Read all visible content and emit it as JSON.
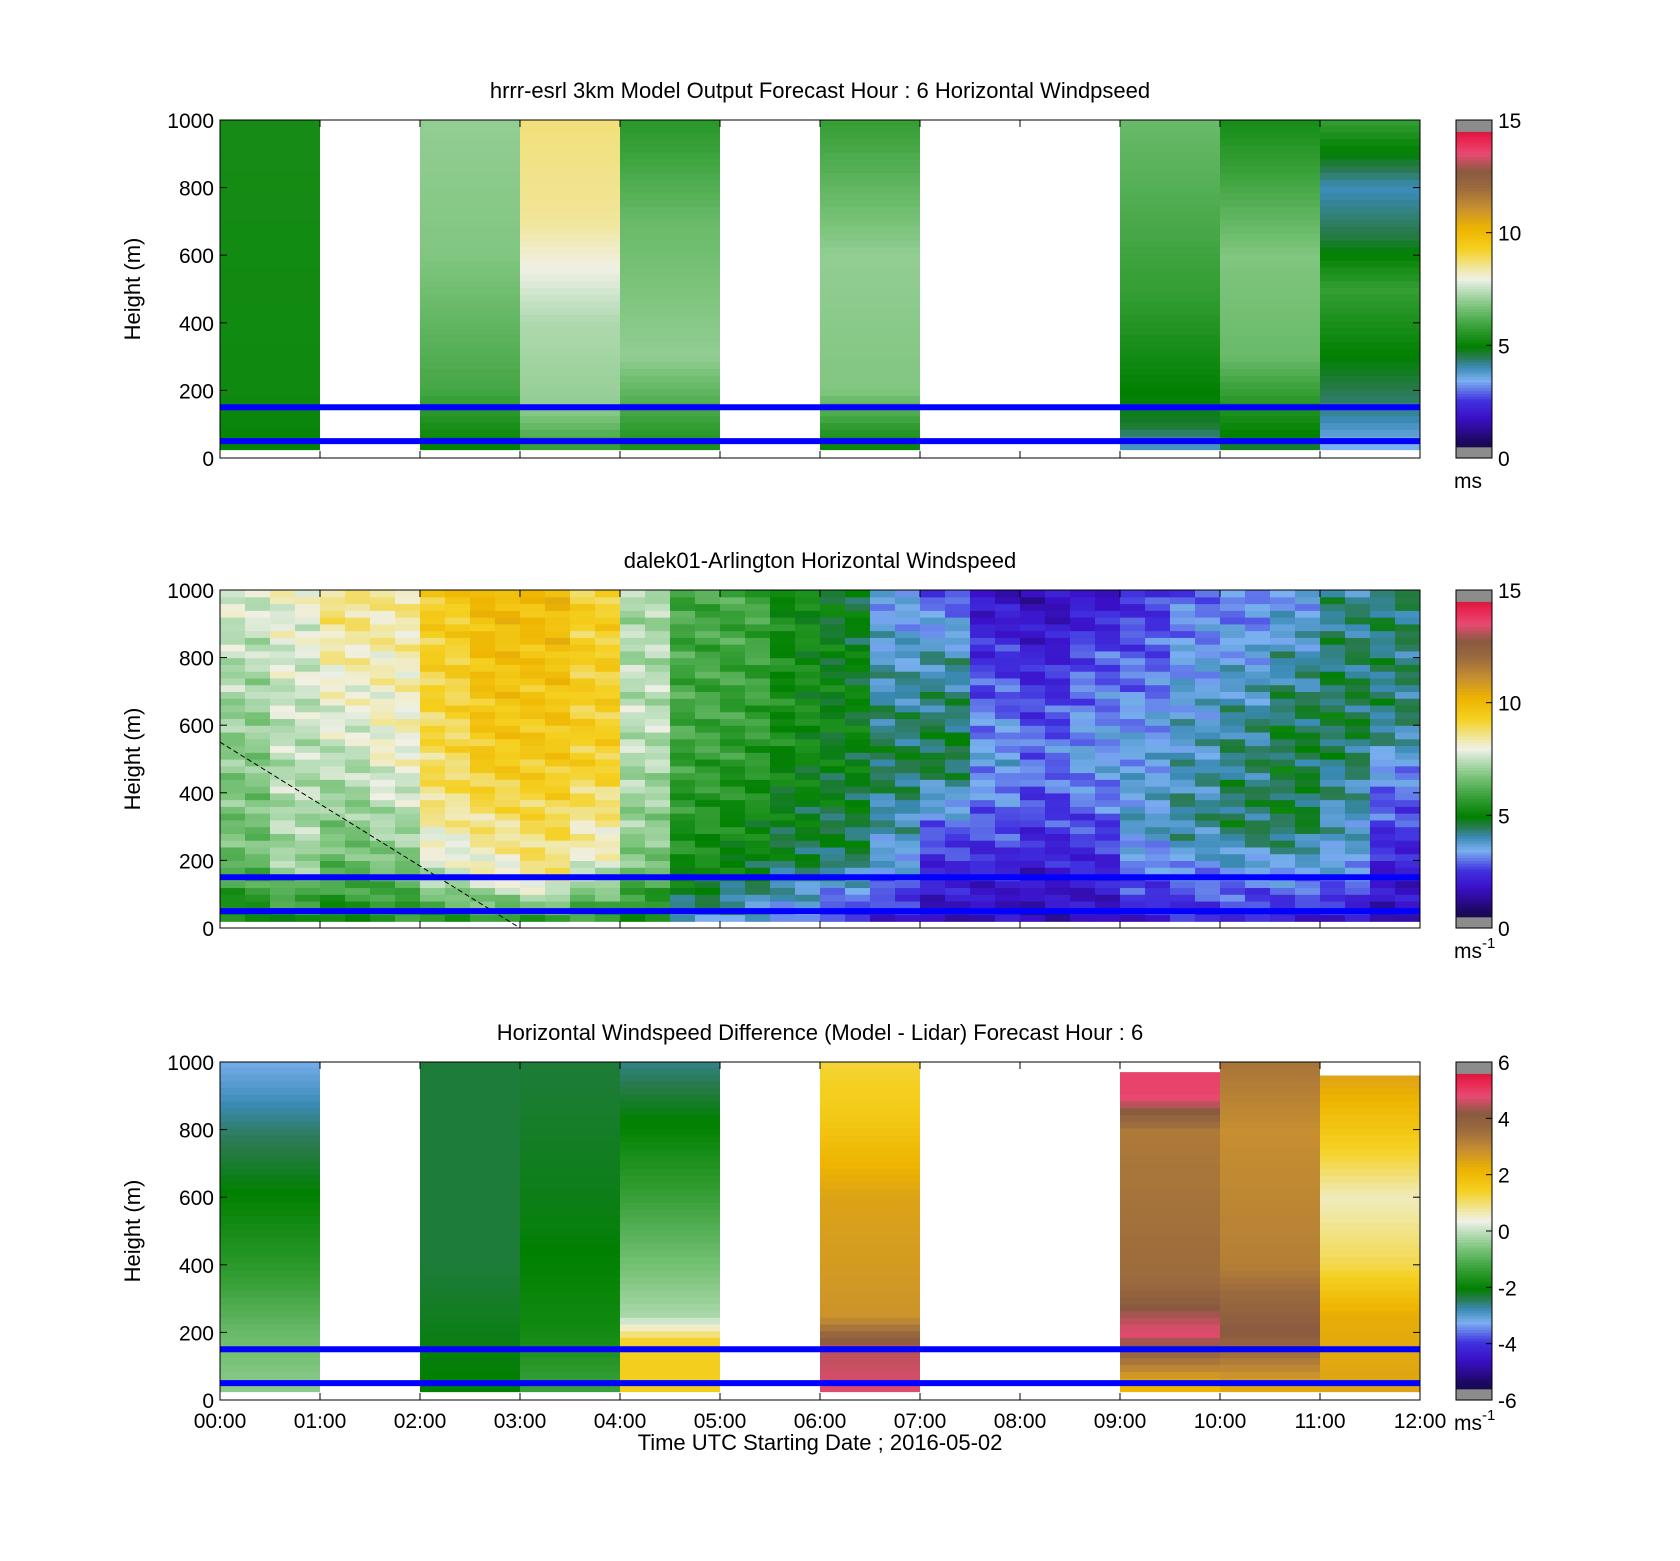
{
  "figure": {
    "xlabel": "Time UTC  Starting Date ; 2016-05-02",
    "x_ticks": [
      "00:00",
      "01:00",
      "02:00",
      "03:00",
      "04:00",
      "05:00",
      "06:00",
      "07:00",
      "08:00",
      "09:00",
      "10:00",
      "11:00",
      "12:00"
    ]
  },
  "chart_data": [
    {
      "type": "heatmap",
      "title": "hrrr-esrl 3km Model Output   Forecast Hour : 6 Horizontal Windpseed",
      "ylabel": "Height (m)",
      "xlim": [
        0,
        12
      ],
      "ylim": [
        0,
        1000
      ],
      "y_ticks": [
        0,
        200,
        400,
        600,
        800,
        1000
      ],
      "colorbar": {
        "min": 0,
        "max": 15,
        "ticks": [
          0,
          5,
          10,
          15
        ],
        "unit": "ms",
        "unit_sup": ""
      },
      "reference_lines_m": [
        50,
        150
      ],
      "hour_columns": [
        {
          "hour": 0,
          "low_m": 25,
          "high_m": 1000,
          "profile": [
            [
              0,
              5.0
            ],
            [
              200,
              5.2
            ],
            [
              1000,
              5.3
            ]
          ]
        },
        {
          "hour": 1,
          "low_m": null,
          "high_m": null,
          "profile": []
        },
        {
          "hour": 2,
          "low_m": 25,
          "high_m": 1000,
          "profile": [
            [
              0,
              4.8
            ],
            [
              200,
              6.0
            ],
            [
              600,
              6.8
            ],
            [
              1000,
              7.0
            ]
          ]
        },
        {
          "hour": 3,
          "low_m": 25,
          "high_m": 1000,
          "profile": [
            [
              0,
              5.5
            ],
            [
              150,
              7.0
            ],
            [
              400,
              7.3
            ],
            [
              700,
              8.5
            ],
            [
              1000,
              8.7
            ]
          ]
        },
        {
          "hour": 4,
          "low_m": 25,
          "high_m": 1000,
          "profile": [
            [
              0,
              5.2
            ],
            [
              300,
              7.0
            ],
            [
              700,
              6.5
            ],
            [
              1000,
              5.6
            ]
          ]
        },
        {
          "hour": 5,
          "low_m": null,
          "high_m": null,
          "profile": []
        },
        {
          "hour": 6,
          "low_m": 25,
          "high_m": 1000,
          "profile": [
            [
              0,
              4.8
            ],
            [
              200,
              6.8
            ],
            [
              600,
              7.0
            ],
            [
              1000,
              5.8
            ]
          ]
        },
        {
          "hour": 7,
          "low_m": null,
          "high_m": null,
          "profile": []
        },
        {
          "hour": 8,
          "low_m": null,
          "high_m": null,
          "profile": []
        },
        {
          "hour": 9,
          "low_m": 25,
          "high_m": 1000,
          "profile": [
            [
              0,
              3.5
            ],
            [
              100,
              4.7
            ],
            [
              500,
              5.8
            ],
            [
              1000,
              6.5
            ]
          ]
        },
        {
          "hour": 10,
          "low_m": 25,
          "high_m": 1000,
          "profile": [
            [
              0,
              4.5
            ],
            [
              300,
              6.5
            ],
            [
              600,
              6.8
            ],
            [
              1000,
              5.3
            ]
          ]
        },
        {
          "hour": 11,
          "low_m": 25,
          "high_m": 1000,
          "profile": [
            [
              0,
              3.2
            ],
            [
              150,
              4.3
            ],
            [
              500,
              5.8
            ],
            [
              650,
              4.6
            ],
            [
              800,
              4.0
            ],
            [
              1000,
              5.8
            ]
          ]
        }
      ]
    },
    {
      "type": "heatmap",
      "title": "dalek01-Arlington  Horizontal Windspeed",
      "ylabel": "Height (m)",
      "xlim": [
        0,
        12
      ],
      "ylim": [
        0,
        1000
      ],
      "y_ticks": [
        0,
        200,
        400,
        600,
        800,
        1000
      ],
      "colorbar": {
        "min": 0,
        "max": 15,
        "ticks": [
          0,
          5,
          10,
          15
        ],
        "unit": "ms",
        "unit_sup": "-1"
      },
      "reference_lines_m": [
        50,
        150
      ],
      "dashed_line": {
        "from": [
          0,
          550
        ],
        "to": [
          3,
          0
        ]
      },
      "time_columns": [
        {
          "t": 0.0,
          "profile": [
            [
              0,
              4.8
            ],
            [
              200,
              6.5
            ],
            [
              600,
              7.0
            ],
            [
              1000,
              7.8
            ]
          ]
        },
        {
          "t": 0.5,
          "profile": [
            [
              0,
              5.0
            ],
            [
              200,
              7.2
            ],
            [
              600,
              7.5
            ],
            [
              1000,
              8.0
            ]
          ]
        },
        {
          "t": 1.0,
          "profile": [
            [
              0,
              5.0
            ],
            [
              200,
              6.5
            ],
            [
              600,
              7.8
            ],
            [
              1000,
              8.8
            ]
          ]
        },
        {
          "t": 1.5,
          "profile": [
            [
              0,
              5.2
            ],
            [
              200,
              6.8
            ],
            [
              500,
              8.0
            ],
            [
              1000,
              8.5
            ]
          ]
        },
        {
          "t": 2.0,
          "profile": [
            [
              0,
              5.0
            ],
            [
              150,
              7.5
            ],
            [
              400,
              8.8
            ],
            [
              1000,
              9.5
            ]
          ]
        },
        {
          "t": 2.5,
          "profile": [
            [
              0,
              5.3
            ],
            [
              150,
              8.0
            ],
            [
              500,
              9.5
            ],
            [
              1000,
              10.0
            ]
          ]
        },
        {
          "t": 3.0,
          "profile": [
            [
              0,
              5.2
            ],
            [
              150,
              8.5
            ],
            [
              500,
              9.5
            ],
            [
              1000,
              10.0
            ]
          ]
        },
        {
          "t": 3.5,
          "profile": [
            [
              0,
              5.3
            ],
            [
              200,
              8.0
            ],
            [
              500,
              9.3
            ],
            [
              1000,
              9.3
            ]
          ]
        },
        {
          "t": 4.0,
          "profile": [
            [
              0,
              4.8
            ],
            [
              200,
              6.8
            ],
            [
              600,
              7.5
            ],
            [
              1000,
              7.2
            ]
          ]
        },
        {
          "t": 4.5,
          "profile": [
            [
              0,
              3.8
            ],
            [
              200,
              5.3
            ],
            [
              600,
              6.0
            ],
            [
              1000,
              6.0
            ]
          ]
        },
        {
          "t": 5.0,
          "profile": [
            [
              0,
              3.5
            ],
            [
              200,
              5.0
            ],
            [
              600,
              5.8
            ],
            [
              1000,
              6.0
            ]
          ]
        },
        {
          "t": 5.5,
          "profile": [
            [
              0,
              3.0
            ],
            [
              200,
              4.6
            ],
            [
              600,
              5.3
            ],
            [
              1000,
              5.2
            ]
          ]
        },
        {
          "t": 6.0,
          "profile": [
            [
              0,
              2.0
            ],
            [
              200,
              4.5
            ],
            [
              600,
              5.0
            ],
            [
              1000,
              4.8
            ]
          ]
        },
        {
          "t": 6.5,
          "profile": [
            [
              0,
              1.8
            ],
            [
              200,
              3.6
            ],
            [
              500,
              4.6
            ],
            [
              1000,
              3.3
            ]
          ]
        },
        {
          "t": 7.0,
          "profile": [
            [
              0,
              1.6
            ],
            [
              250,
              2.6
            ],
            [
              500,
              4.7
            ],
            [
              800,
              4.0
            ],
            [
              1000,
              2.8
            ]
          ]
        },
        {
          "t": 7.5,
          "profile": [
            [
              0,
              1.5
            ],
            [
              300,
              2.8
            ],
            [
              500,
              3.5
            ],
            [
              800,
              2.5
            ],
            [
              1000,
              1.8
            ]
          ]
        },
        {
          "t": 8.0,
          "profile": [
            [
              0,
              1.4
            ],
            [
              300,
              2.5
            ],
            [
              500,
              3.1
            ],
            [
              800,
              2.2
            ],
            [
              1000,
              1.6
            ]
          ]
        },
        {
          "t": 8.5,
          "profile": [
            [
              0,
              1.6
            ],
            [
              300,
              2.7
            ],
            [
              500,
              3.5
            ],
            [
              800,
              2.8
            ],
            [
              1000,
              1.8
            ]
          ]
        },
        {
          "t": 9.0,
          "profile": [
            [
              0,
              1.9
            ],
            [
              300,
              3.8
            ],
            [
              600,
              3.4
            ],
            [
              1000,
              2.4
            ]
          ]
        },
        {
          "t": 9.5,
          "profile": [
            [
              0,
              2.1
            ],
            [
              300,
              4.2
            ],
            [
              600,
              3.8
            ],
            [
              1000,
              3.0
            ]
          ]
        },
        {
          "t": 10.0,
          "profile": [
            [
              0,
              2.0
            ],
            [
              300,
              4.5
            ],
            [
              600,
              4.2
            ],
            [
              1000,
              3.0
            ]
          ]
        },
        {
          "t": 10.5,
          "profile": [
            [
              0,
              1.9
            ],
            [
              300,
              4.6
            ],
            [
              600,
              4.6
            ],
            [
              1000,
              3.4
            ]
          ]
        },
        {
          "t": 11.0,
          "profile": [
            [
              0,
              1.7
            ],
            [
              200,
              3.6
            ],
            [
              600,
              4.6
            ],
            [
              1000,
              4.2
            ]
          ]
        },
        {
          "t": 11.5,
          "profile": [
            [
              0,
              1.5
            ],
            [
              200,
              2.2
            ],
            [
              450,
              3.2
            ],
            [
              600,
              4.3
            ],
            [
              950,
              4.4
            ]
          ]
        }
      ]
    },
    {
      "type": "heatmap",
      "title": "Horizontal Windspeed Difference (Model - Lidar) Forecast Hour : 6",
      "ylabel": "Height (m)",
      "xlim": [
        0,
        12
      ],
      "ylim": [
        0,
        1000
      ],
      "y_ticks": [
        0,
        200,
        400,
        600,
        800,
        1000
      ],
      "colorbar": {
        "min": -6,
        "max": 6,
        "ticks": [
          -6,
          -4,
          -2,
          0,
          2,
          4,
          6
        ],
        "unit": "ms",
        "unit_sup": "-1"
      },
      "reference_lines_m": [
        50,
        150
      ],
      "hour_columns": [
        {
          "hour": 0,
          "low_m": 25,
          "high_m": 1000,
          "profile": [
            [
              0,
              -0.4
            ],
            [
              200,
              -0.8
            ],
            [
              400,
              -1.5
            ],
            [
              800,
              -2.5
            ],
            [
              1000,
              -3.2
            ]
          ]
        },
        {
          "hour": 1,
          "low_m": null,
          "high_m": null,
          "profile": []
        },
        {
          "hour": 2,
          "low_m": 25,
          "high_m": 1000,
          "profile": [
            [
              0,
              -2.0
            ],
            [
              400,
              -2.3
            ],
            [
              1000,
              -2.3
            ]
          ]
        },
        {
          "hour": 3,
          "low_m": 25,
          "high_m": 1000,
          "profile": [
            [
              0,
              -1.2
            ],
            [
              200,
              -1.8
            ],
            [
              500,
              -2.1
            ],
            [
              1000,
              -2.3
            ]
          ]
        },
        {
          "hour": 4,
          "low_m": 25,
          "high_m": 1000,
          "profile": [
            [
              0,
              1.5
            ],
            [
              170,
              1.5
            ],
            [
              250,
              -0.2
            ],
            [
              500,
              -1.0
            ],
            [
              1000,
              -2.6
            ]
          ]
        },
        {
          "hour": 5,
          "low_m": null,
          "high_m": null,
          "profile": []
        },
        {
          "hour": 6,
          "low_m": 25,
          "high_m": 1000,
          "profile": [
            [
              0,
              4.8
            ],
            [
              150,
              4.5
            ],
            [
              250,
              2.8
            ],
            [
              600,
              2.5
            ],
            [
              850,
              1.6
            ],
            [
              1000,
              1.3
            ]
          ]
        },
        {
          "hour": 7,
          "low_m": null,
          "high_m": null,
          "profile": []
        },
        {
          "hour": 8,
          "low_m": null,
          "high_m": null,
          "profile": []
        },
        {
          "hour": 9,
          "low_m": 25,
          "high_m": 970,
          "profile": [
            [
              0,
              1.5
            ],
            [
              200,
              4.8
            ],
            [
              350,
              3.6
            ],
            [
              800,
              3.3
            ],
            [
              900,
              4.9
            ],
            [
              970,
              4.9
            ]
          ]
        },
        {
          "hour": 10,
          "low_m": 25,
          "high_m": 1000,
          "profile": [
            [
              0,
              2.0
            ],
            [
              200,
              4.2
            ],
            [
              400,
              3.2
            ],
            [
              800,
              2.9
            ],
            [
              1000,
              3.4
            ]
          ]
        },
        {
          "hour": 11,
          "low_m": 25,
          "high_m": 960,
          "profile": [
            [
              0,
              2.5
            ],
            [
              250,
              2.3
            ],
            [
              400,
              1.2
            ],
            [
              600,
              0.6
            ],
            [
              720,
              1.3
            ],
            [
              960,
              2.5
            ]
          ]
        }
      ]
    }
  ]
}
